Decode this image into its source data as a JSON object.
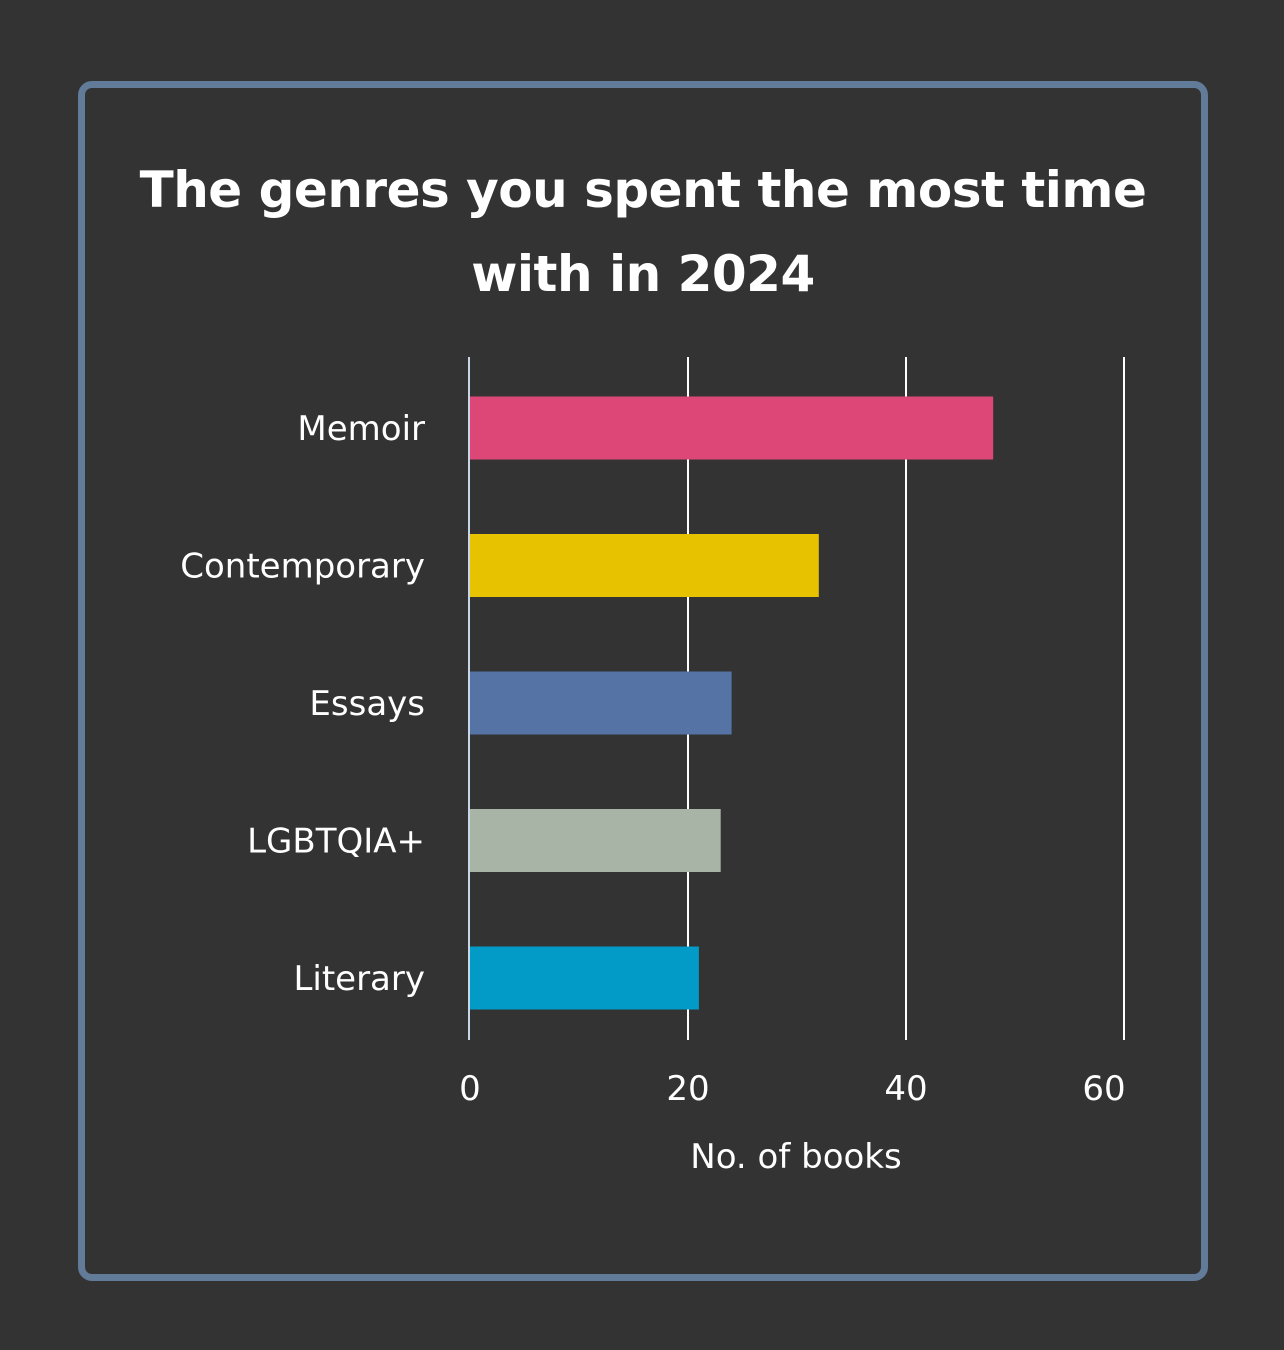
{
  "chart_data": {
    "type": "bar",
    "orientation": "horizontal",
    "title_lines": [
      "The genres you spent the most time",
      "with in 2024"
    ],
    "categories": [
      "Memoir",
      "Contemporary",
      "Essays",
      "LGBTQIA+",
      "Literary"
    ],
    "values": [
      48,
      32,
      24,
      23,
      21
    ],
    "colors": [
      "#dc4778",
      "#e6c200",
      "#5573a5",
      "#a8b5a6",
      "#029bc8"
    ],
    "xlabel": "No. of books",
    "ylabel": "",
    "xlim": [
      0,
      60
    ],
    "xticks": [
      "0",
      "20",
      "40",
      "60"
    ],
    "grid": true,
    "legend": "none"
  }
}
